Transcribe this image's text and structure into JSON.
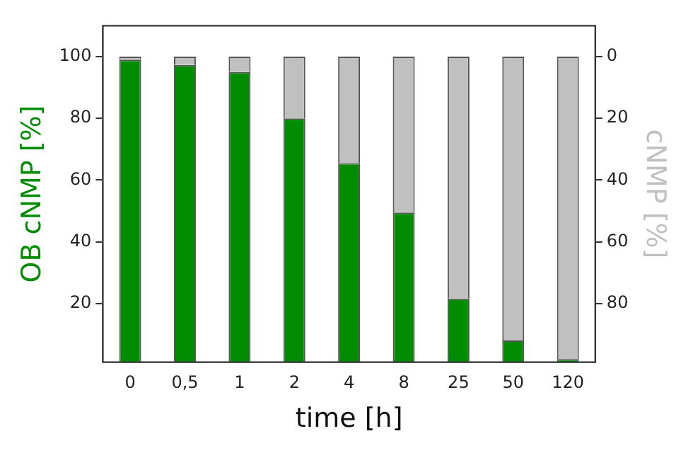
{
  "chart_data": {
    "type": "bar",
    "stacked": true,
    "xlabel": "time [h]",
    "ylabel": "OB cNMP [%]",
    "y2label": "cNMP [%]",
    "categories": [
      "0",
      "0,5",
      "1",
      "2",
      "4",
      "8",
      "25",
      "50",
      "120"
    ],
    "series": [
      {
        "color": "#008c00",
        "values": [
          99,
          97.3,
          95,
          80,
          65.5,
          49.5,
          21.6,
          8,
          2
        ]
      },
      {
        "color": "#c0c0c0",
        "values": [
          1,
          2.7,
          5,
          20,
          34.5,
          50.5,
          78.4,
          92,
          98
        ]
      }
    ],
    "ylim": [
      1,
      110
    ],
    "yticks": [
      20,
      40,
      60,
      80,
      100
    ],
    "y2lim": [
      99,
      -10
    ],
    "y2ticks": [
      0,
      20,
      40,
      60,
      80
    ],
    "grid": false,
    "legend": false
  }
}
